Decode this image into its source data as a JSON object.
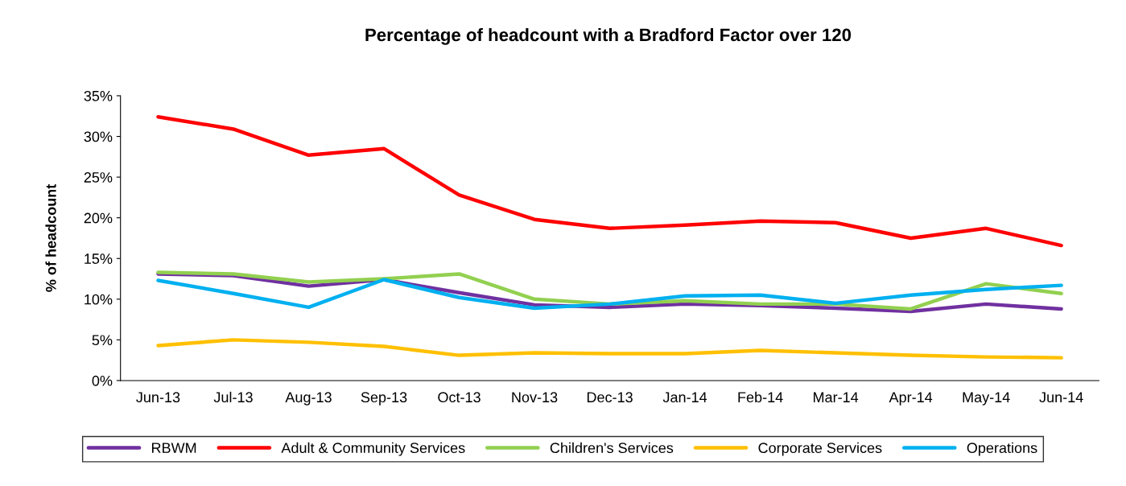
{
  "chart_data": {
    "type": "line",
    "title": "Percentage of headcount with a Bradford Factor over 120",
    "ylabel": "% of headcount",
    "categories": [
      "Jun-13",
      "Jul-13",
      "Aug-13",
      "Sep-13",
      "Oct-13",
      "Nov-13",
      "Dec-13",
      "Jan-14",
      "Feb-14",
      "Mar-14",
      "Apr-14",
      "May-14",
      "Jun-14"
    ],
    "series": [
      {
        "name": "RBWM",
        "color": "#7030a0",
        "values": [
          13.1,
          12.9,
          11.6,
          12.4,
          10.8,
          9.3,
          9.0,
          9.4,
          9.2,
          8.9,
          8.5,
          9.4,
          8.8
        ]
      },
      {
        "name": "Adult & Community Services",
        "color": "#ff0000",
        "values": [
          32.4,
          30.9,
          27.7,
          28.5,
          22.8,
          19.8,
          18.7,
          19.1,
          19.6,
          19.4,
          17.5,
          18.7,
          16.6
        ]
      },
      {
        "name": "Children's Services",
        "color": "#92d050",
        "values": [
          13.3,
          13.1,
          12.1,
          12.5,
          13.1,
          10.0,
          9.4,
          9.8,
          9.4,
          9.4,
          8.8,
          11.9,
          10.7
        ]
      },
      {
        "name": "Corporate Services",
        "color": "#ffc000",
        "values": [
          4.3,
          5.0,
          4.7,
          4.2,
          3.1,
          3.4,
          3.3,
          3.3,
          3.7,
          3.4,
          3.1,
          2.9,
          2.8
        ]
      },
      {
        "name": "Operations",
        "color": "#00b0f0",
        "values": [
          12.3,
          10.7,
          9.0,
          12.4,
          10.2,
          8.9,
          9.4,
          10.4,
          10.5,
          9.5,
          10.5,
          11.2,
          11.7
        ]
      }
    ],
    "ylim": [
      0,
      35
    ],
    "yticks": [
      {
        "value": 0,
        "label": "0%"
      },
      {
        "value": 5,
        "label": "5%"
      },
      {
        "value": 10,
        "label": "10%"
      },
      {
        "value": 15,
        "label": "15%"
      },
      {
        "value": 20,
        "label": "20%"
      },
      {
        "value": 25,
        "label": "25%"
      },
      {
        "value": 30,
        "label": "30%"
      },
      {
        "value": 35,
        "label": "35%"
      }
    ],
    "grid": false,
    "legend": "bottom",
    "marker": "none",
    "line_style": "solid"
  }
}
